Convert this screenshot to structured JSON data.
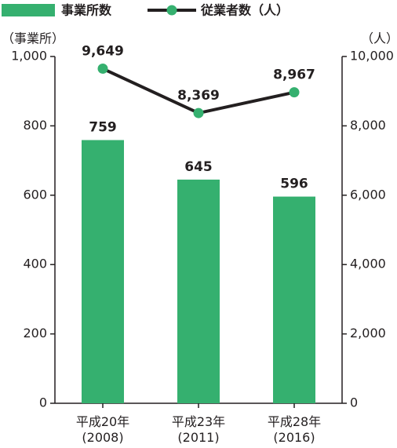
{
  "chart_data": {
    "type": "bar",
    "categories": [
      "平成20年\n(2008)",
      "平成23年\n(2011)",
      "平成28年\n(2016)"
    ],
    "series": [
      {
        "name": "事業所数",
        "type": "bar",
        "color": "#35b06f",
        "values": [
          759,
          645,
          596
        ]
      },
      {
        "name": "従業者数（人）",
        "type": "line",
        "axis": "y2",
        "color": "#231f20",
        "marker_color": "#35b06f",
        "values": [
          9649,
          8369,
          8967
        ],
        "value_labels": [
          "9,649",
          "8,369",
          "8,967"
        ]
      }
    ],
    "y_unit": "（事業所）",
    "y2_unit": "（人）",
    "ylim": [
      0,
      1000
    ],
    "yticks": [
      0,
      200,
      400,
      600,
      800,
      {
        "value": 1000,
        "label": "1,000"
      }
    ],
    "y2lim": [
      0,
      10000
    ],
    "y2ticks": [
      0,
      {
        "value": 2000,
        "label": "2,000"
      },
      {
        "value": 4000,
        "label": "4,000"
      },
      {
        "value": 6000,
        "label": "6,000"
      },
      {
        "value": 8000,
        "label": "8,000"
      },
      {
        "value": 10000,
        "label": "10,000"
      }
    ]
  }
}
